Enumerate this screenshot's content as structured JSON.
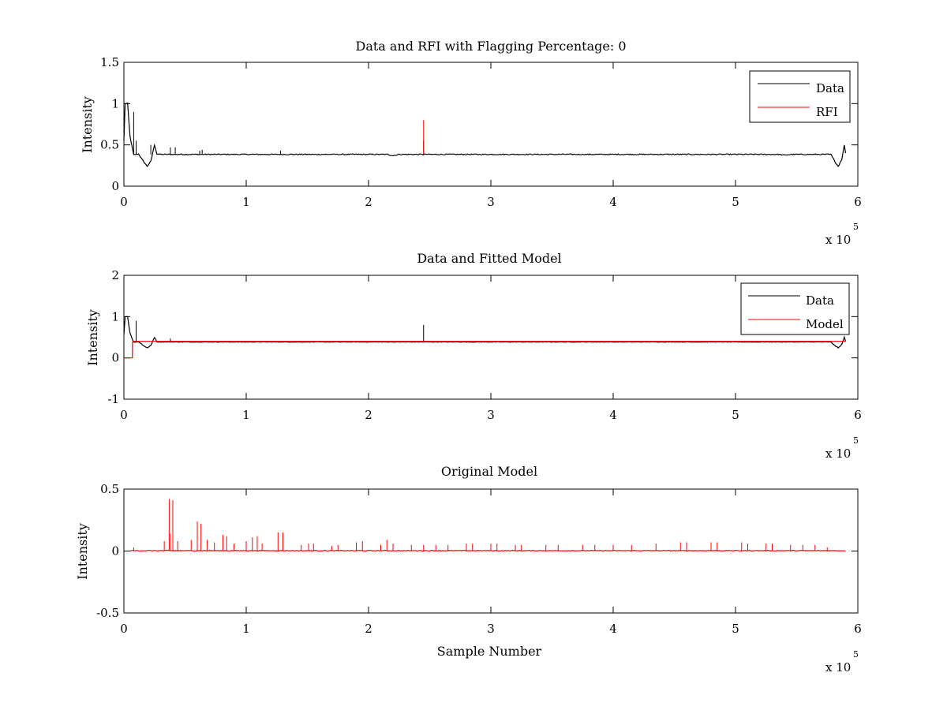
{
  "colors": {
    "data": "#000000",
    "rfi": "#ff0000",
    "model": "#ff0000"
  },
  "chart_data": [
    {
      "type": "line",
      "title": "Data and RFI with Flagging Percentage: 0",
      "xlabel": "",
      "ylabel": "Intensity",
      "xlim": [
        0,
        6
      ],
      "ylim": [
        0,
        1.5
      ],
      "x_multiplier": "x 10",
      "x_multiplier_exponent": "5",
      "xticks": [
        0,
        1,
        2,
        3,
        4,
        5,
        6
      ],
      "xtick_labels": [
        "0",
        "1",
        "2",
        "3",
        "4",
        "5",
        "6"
      ],
      "yticks": [
        0,
        0.5,
        1,
        1.5
      ],
      "ytick_labels": [
        "0",
        "0.5",
        "1",
        "1.5"
      ],
      "legend": {
        "placement": "top-right",
        "entries": [
          "Data",
          "RFI"
        ]
      },
      "series": [
        {
          "name": "Data",
          "color": "#000000",
          "baseline": 0.385,
          "profile": [
            [
              0.0,
              0.55
            ],
            [
              0.01,
              1.0
            ],
            [
              0.03,
              1.0
            ],
            [
              0.05,
              0.6
            ],
            [
              0.08,
              0.38
            ],
            [
              0.12,
              0.39
            ],
            [
              0.15,
              0.32
            ],
            [
              0.19,
              0.24
            ],
            [
              0.22,
              0.3
            ],
            [
              0.25,
              0.5
            ],
            [
              0.27,
              0.39
            ],
            [
              0.3,
              0.385
            ],
            [
              2.15,
              0.385
            ],
            [
              2.2,
              0.37
            ],
            [
              2.25,
              0.385
            ],
            [
              5.35,
              0.385
            ],
            [
              5.4,
              0.375
            ],
            [
              5.45,
              0.385
            ],
            [
              5.78,
              0.385
            ],
            [
              5.82,
              0.28
            ],
            [
              5.84,
              0.24
            ],
            [
              5.87,
              0.33
            ],
            [
              5.89,
              0.5
            ],
            [
              5.9,
              0.4
            ]
          ],
          "spikes": [
            [
              0.08,
              0.9
            ],
            [
              0.1,
              0.55
            ],
            [
              0.22,
              0.5
            ],
            [
              0.38,
              0.47
            ],
            [
              0.42,
              0.47
            ],
            [
              0.62,
              0.43
            ],
            [
              0.64,
              0.44
            ],
            [
              1.28,
              0.43
            ],
            [
              2.45,
              0.55
            ]
          ]
        },
        {
          "name": "RFI",
          "color": "#ff0000",
          "spikes": [
            [
              2.45,
              0.8
            ]
          ]
        }
      ]
    },
    {
      "type": "line",
      "title": "Data and Fitted Model",
      "xlabel": "",
      "ylabel": "Intensity",
      "xlim": [
        0,
        6
      ],
      "ylim": [
        -1,
        2
      ],
      "x_multiplier": "x 10",
      "x_multiplier_exponent": "5",
      "xticks": [
        0,
        1,
        2,
        3,
        4,
        5,
        6
      ],
      "xtick_labels": [
        "0",
        "1",
        "2",
        "3",
        "4",
        "5",
        "6"
      ],
      "yticks": [
        -1,
        0,
        1,
        2
      ],
      "ytick_labels": [
        "-1",
        "0",
        "1",
        "2"
      ],
      "legend": {
        "placement": "top-right",
        "entries": [
          "Data",
          "Model"
        ]
      },
      "series": [
        {
          "name": "Data",
          "color": "#000000",
          "baseline": 0.385,
          "profile": [
            [
              0.0,
              0.55
            ],
            [
              0.01,
              1.0
            ],
            [
              0.03,
              1.0
            ],
            [
              0.05,
              0.6
            ],
            [
              0.08,
              0.38
            ],
            [
              0.12,
              0.39
            ],
            [
              0.15,
              0.32
            ],
            [
              0.19,
              0.24
            ],
            [
              0.22,
              0.3
            ],
            [
              0.25,
              0.5
            ],
            [
              0.27,
              0.39
            ],
            [
              0.3,
              0.385
            ],
            [
              5.78,
              0.385
            ],
            [
              5.82,
              0.28
            ],
            [
              5.84,
              0.24
            ],
            [
              5.87,
              0.33
            ],
            [
              5.89,
              0.5
            ],
            [
              5.9,
              0.4
            ]
          ],
          "spikes": [
            [
              0.1,
              0.9
            ],
            [
              2.45,
              0.8
            ],
            [
              0.38,
              0.47
            ]
          ]
        },
        {
          "name": "Model",
          "color": "#ff0000",
          "profile": [
            [
              0.0,
              0.0
            ],
            [
              0.07,
              0.0
            ],
            [
              0.07,
              0.38
            ],
            [
              0.08,
              0.4
            ],
            [
              5.9,
              0.4
            ]
          ]
        }
      ]
    },
    {
      "type": "line",
      "title": "Original Model",
      "xlabel": "Sample Number",
      "ylabel": "Intensity",
      "xlim": [
        0,
        6
      ],
      "ylim": [
        -0.5,
        0.5
      ],
      "x_multiplier": "x 10",
      "x_multiplier_exponent": "5",
      "xticks": [
        0,
        1,
        2,
        3,
        4,
        5,
        6
      ],
      "xtick_labels": [
        "0",
        "1",
        "2",
        "3",
        "4",
        "5",
        "6"
      ],
      "yticks": [
        -0.5,
        0,
        0.5
      ],
      "ytick_labels": [
        "-0.5",
        "0",
        "0.5"
      ],
      "legend": null,
      "series": [
        {
          "name": "",
          "color": "#ff0000",
          "baseline": 0.0,
          "spikes": [
            [
              0.08,
              0.03
            ],
            [
              0.33,
              0.08
            ],
            [
              0.37,
              0.42
            ],
            [
              0.38,
              0.14
            ],
            [
              0.4,
              0.41
            ],
            [
              0.44,
              0.08
            ],
            [
              0.55,
              0.09
            ],
            [
              0.6,
              0.24
            ],
            [
              0.63,
              0.22
            ],
            [
              0.68,
              0.09
            ],
            [
              0.74,
              0.07
            ],
            [
              0.81,
              0.13
            ],
            [
              0.84,
              0.12
            ],
            [
              0.9,
              0.06
            ],
            [
              1.0,
              0.08
            ],
            [
              1.05,
              0.11
            ],
            [
              1.09,
              0.12
            ],
            [
              1.13,
              0.06
            ],
            [
              1.26,
              0.15
            ],
            [
              1.3,
              0.15
            ],
            [
              1.45,
              0.05
            ],
            [
              1.51,
              0.06
            ],
            [
              1.55,
              0.06
            ],
            [
              1.7,
              0.04
            ],
            [
              1.75,
              0.05
            ],
            [
              1.9,
              0.07
            ],
            [
              1.95,
              0.08
            ],
            [
              2.1,
              0.05
            ],
            [
              2.15,
              0.09
            ],
            [
              2.2,
              0.06
            ],
            [
              2.35,
              0.05
            ],
            [
              2.45,
              0.05
            ],
            [
              2.55,
              0.05
            ],
            [
              2.65,
              0.05
            ],
            [
              2.8,
              0.06
            ],
            [
              2.85,
              0.06
            ],
            [
              3.0,
              0.06
            ],
            [
              3.05,
              0.06
            ],
            [
              3.2,
              0.05
            ],
            [
              3.25,
              0.05
            ],
            [
              3.45,
              0.05
            ],
            [
              3.55,
              0.05
            ],
            [
              3.75,
              0.05
            ],
            [
              3.85,
              0.05
            ],
            [
              4.0,
              0.05
            ],
            [
              4.15,
              0.05
            ],
            [
              4.35,
              0.06
            ],
            [
              4.55,
              0.07
            ],
            [
              4.6,
              0.07
            ],
            [
              4.8,
              0.07
            ],
            [
              4.85,
              0.07
            ],
            [
              5.05,
              0.07
            ],
            [
              5.1,
              0.06
            ],
            [
              5.25,
              0.06
            ],
            [
              5.3,
              0.06
            ],
            [
              5.45,
              0.05
            ],
            [
              5.55,
              0.05
            ],
            [
              5.65,
              0.05
            ],
            [
              5.75,
              0.03
            ]
          ]
        }
      ]
    }
  ]
}
